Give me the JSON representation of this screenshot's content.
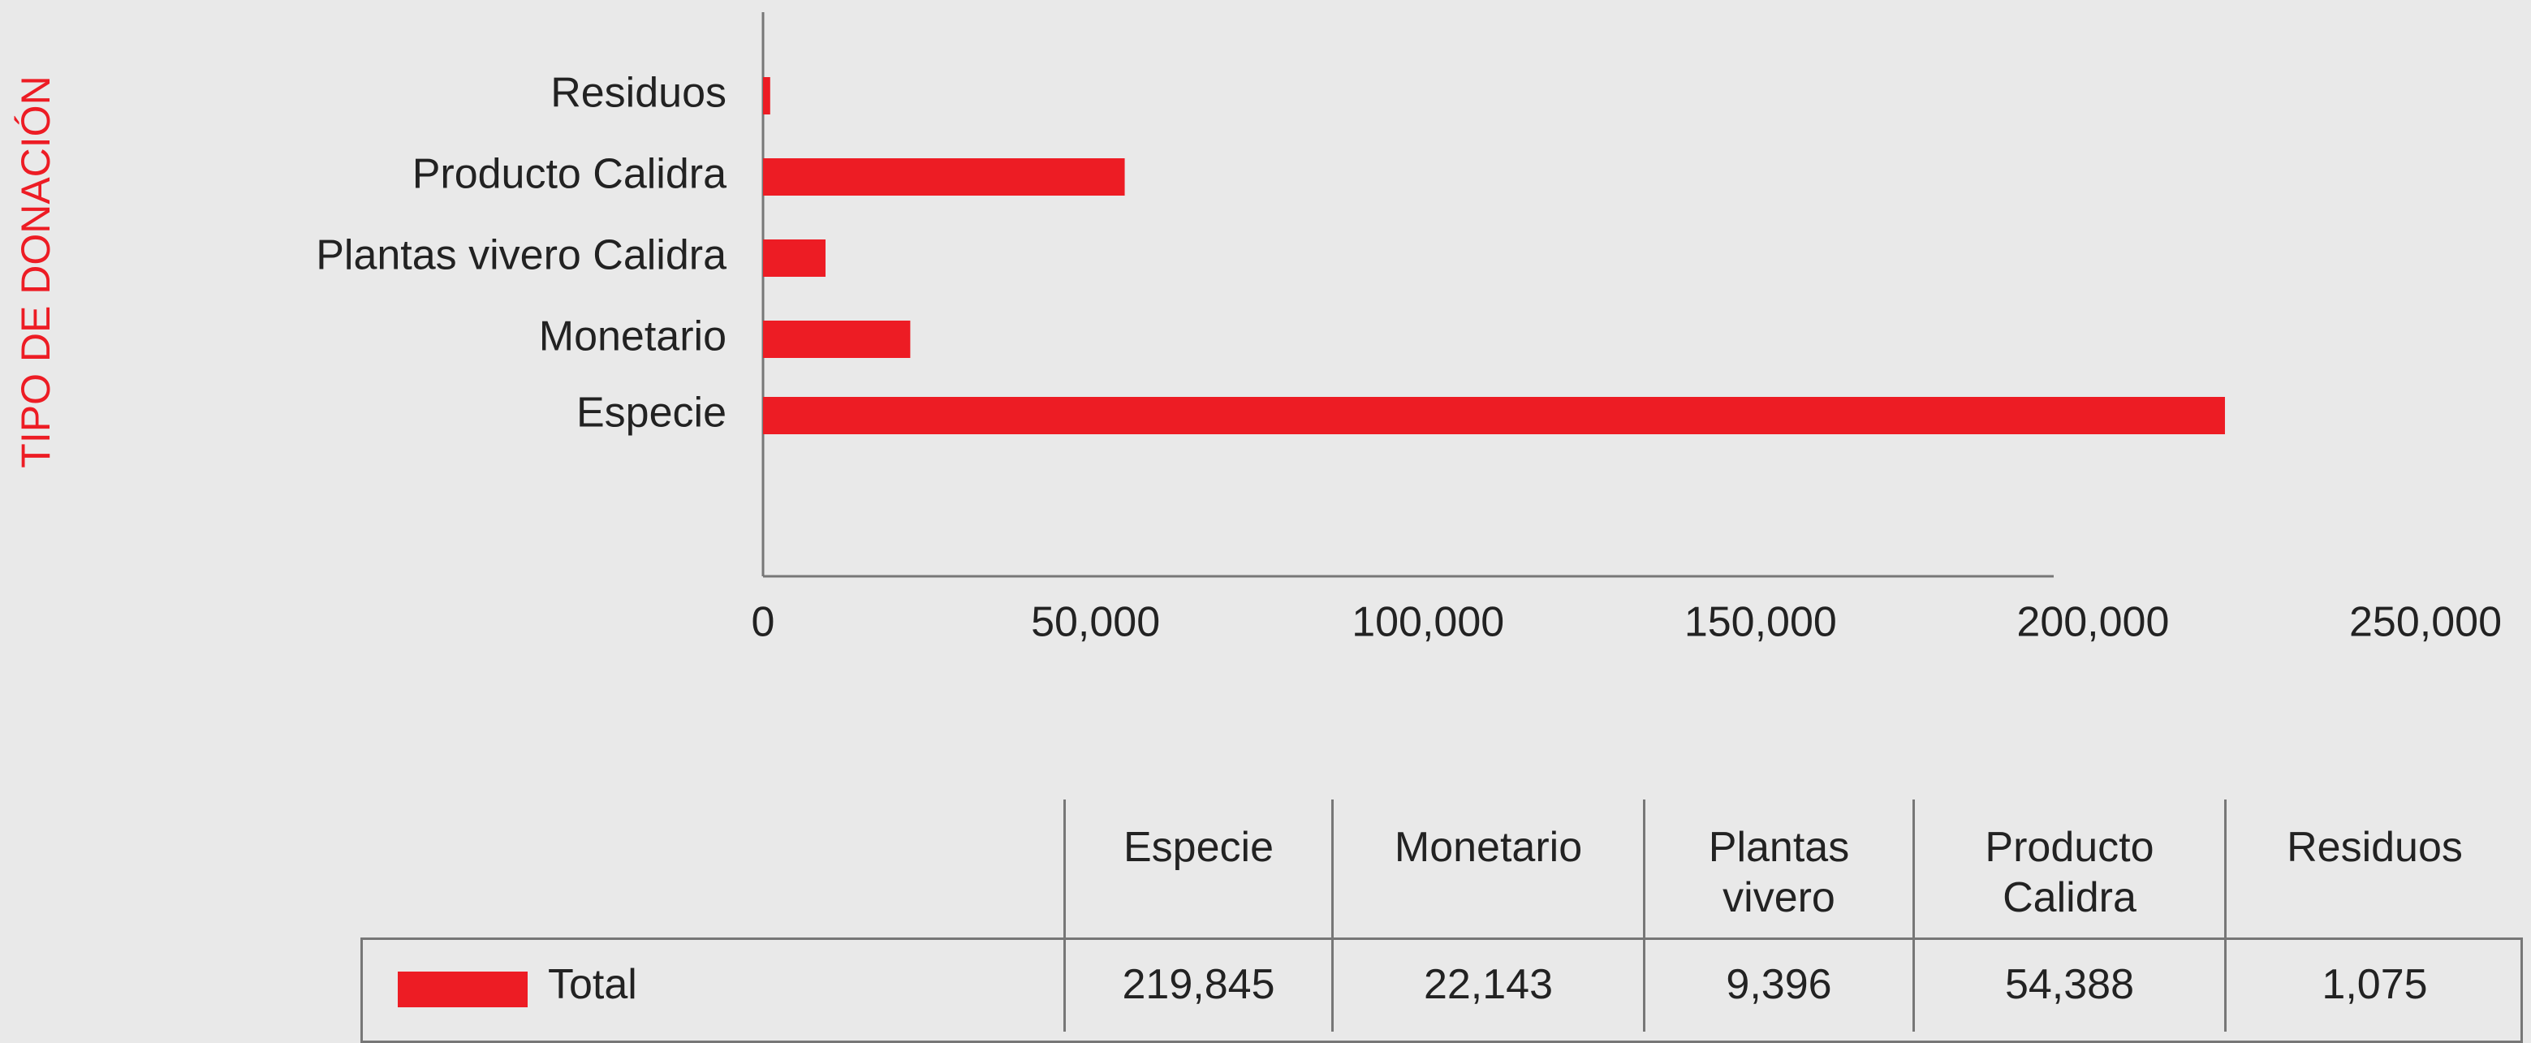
{
  "chart_data": {
    "type": "bar",
    "orientation": "horizontal",
    "axis_title": "TIPO DE DONACIÓN",
    "categories": [
      "Especie",
      "Monetario",
      "Plantas vivero Calidra",
      "Producto Calidra",
      "Residuos"
    ],
    "series": [
      {
        "name": "Total",
        "color": "#ed1c24",
        "values": [
          219845,
          22143,
          9396,
          54388,
          1075
        ],
        "value_labels": [
          "219,845",
          "22,143",
          "9,396",
          "54,388",
          "1,075"
        ]
      }
    ],
    "xlim": [
      0,
      250000
    ],
    "xticks": [
      0,
      {
        "value": 50000,
        "label": "50,000"
      },
      {
        "value": 100000,
        "label": "100,000"
      },
      {
        "value": 150000,
        "label": "150,000"
      },
      {
        "value": 200000,
        "label": "200,000"
      },
      {
        "value": 250000,
        "label": "250,000"
      }
    ],
    "table_columns": [
      "Especie",
      "Monetario",
      "Plantas vivero",
      "Producto Calidra",
      "Residuos"
    ]
  }
}
